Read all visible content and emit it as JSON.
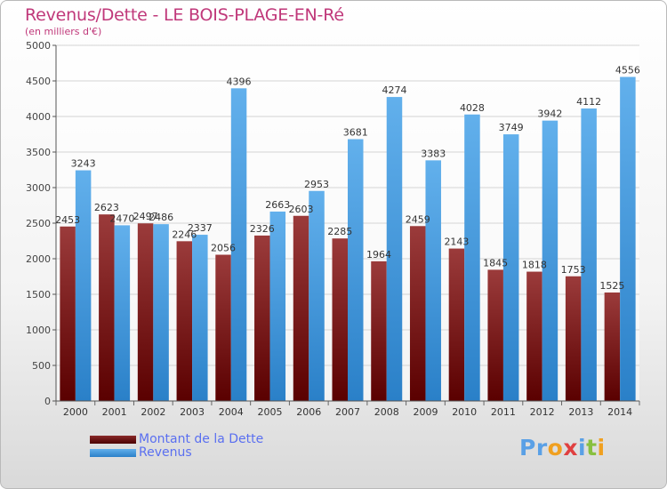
{
  "title": "Revenus/Dette - LE BOIS-PLAGE-EN-Ré",
  "subtitle": "(en milliers d'€)",
  "logo": {
    "letters": [
      "P",
      "r",
      "o",
      "x",
      "i",
      "t",
      "i"
    ],
    "colors": [
      "#5aa0e6",
      "#5aa0e6",
      "#f0a020",
      "#e04040",
      "#5aa0e6",
      "#88c040",
      "#f0a020"
    ]
  },
  "colors": {
    "dette": "#6d0a0a",
    "revenus": "#2e86d0",
    "title": "#c0387a",
    "legend_text": "#5a6ff0"
  },
  "chart_data": {
    "type": "bar",
    "categories": [
      "2000",
      "2001",
      "2002",
      "2003",
      "2004",
      "2005",
      "2006",
      "2007",
      "2008",
      "2009",
      "2010",
      "2011",
      "2012",
      "2013",
      "2014"
    ],
    "series": [
      {
        "name": "Montant de la Dette",
        "values": [
          2453,
          2623,
          2497,
          2246,
          2056,
          2326,
          2603,
          2285,
          1964,
          2459,
          2143,
          1845,
          1818,
          1753,
          1525
        ],
        "labels": [
          "2453",
          "2623",
          "2497",
          "2246",
          "2056",
          "2326",
          "2603",
          "2285",
          "1964",
          "2459",
          "2143",
          "1845",
          "1818",
          "1753",
          "1525"
        ]
      },
      {
        "name": "Revenus",
        "values": [
          3243,
          2470,
          2486,
          2337,
          4396,
          2663,
          2953,
          3681,
          4274,
          3383,
          4028,
          3749,
          3942,
          4112,
          4556
        ],
        "labels": [
          "3243",
          "2470",
          "2486",
          "2337",
          "4396",
          "2663",
          "2953",
          "3681",
          "4274",
          "3383",
          "4028",
          "3749",
          "3942",
          "4112",
          "4556"
        ]
      }
    ],
    "yticks": [
      "0",
      "500",
      "1000",
      "1500",
      "2000",
      "2500",
      "3000",
      "3500",
      "4000",
      "4500",
      "5000"
    ],
    "ylim": [
      0,
      5000
    ],
    "grid": true,
    "legend_position": "bottom-left"
  }
}
